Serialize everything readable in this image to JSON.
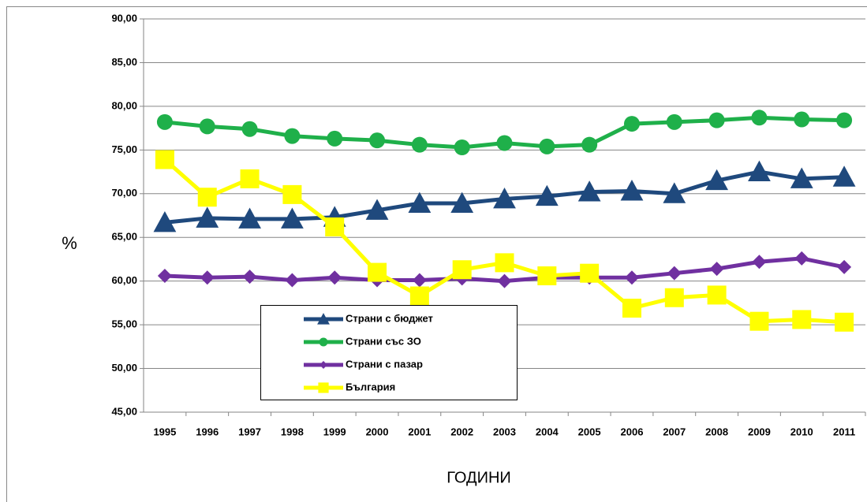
{
  "chart_data": {
    "type": "line",
    "x_label": "ГОДИНИ",
    "y_label": "%",
    "categories": [
      "1995",
      "1996",
      "1997",
      "1998",
      "1999",
      "2000",
      "2001",
      "2002",
      "2003",
      "2004",
      "2005",
      "2006",
      "2007",
      "2008",
      "2009",
      "2010",
      "2011"
    ],
    "ylim": [
      45,
      90
    ],
    "yticks": [
      {
        "value": 45,
        "label": "45,00"
      },
      {
        "value": 50,
        "label": "50,00"
      },
      {
        "value": 55,
        "label": "55,00"
      },
      {
        "value": 60,
        "label": "60,00"
      },
      {
        "value": 65,
        "label": "65,00"
      },
      {
        "value": 70,
        "label": "70,00"
      },
      {
        "value": 75,
        "label": "75,00"
      },
      {
        "value": 80,
        "label": "80,00"
      },
      {
        "value": 85,
        "label": "85,00"
      },
      {
        "value": 90,
        "label": "90,00"
      }
    ],
    "grid": true,
    "series": [
      {
        "name": "Страни с бюджет",
        "color": "#1f497d",
        "marker": "triangle",
        "values": [
          66.7,
          67.2,
          67.1,
          67.1,
          67.3,
          68.1,
          68.9,
          68.9,
          69.4,
          69.7,
          70.2,
          70.3,
          70.0,
          71.5,
          72.5,
          71.7,
          71.9
        ]
      },
      {
        "name": "Страни със ЗО",
        "color": "#1fb04a",
        "marker": "circle",
        "values": [
          78.2,
          77.7,
          77.4,
          76.6,
          76.3,
          76.1,
          75.6,
          75.3,
          75.8,
          75.4,
          75.6,
          78.0,
          78.2,
          78.4,
          78.7,
          78.5,
          78.4
        ]
      },
      {
        "name": "Страни с пазар",
        "color": "#7030a0",
        "marker": "diamond",
        "values": [
          60.6,
          60.4,
          60.5,
          60.1,
          60.4,
          60.1,
          60.1,
          60.3,
          60.0,
          60.4,
          60.4,
          60.4,
          60.9,
          61.4,
          62.2,
          62.6,
          61.6
        ]
      },
      {
        "name": "България",
        "color": "#ffff00",
        "marker": "square",
        "values": [
          73.9,
          69.6,
          71.7,
          69.9,
          66.2,
          61.0,
          58.3,
          61.3,
          62.1,
          60.6,
          60.9,
          56.9,
          58.1,
          58.4,
          55.4,
          55.6,
          55.3
        ]
      }
    ]
  }
}
